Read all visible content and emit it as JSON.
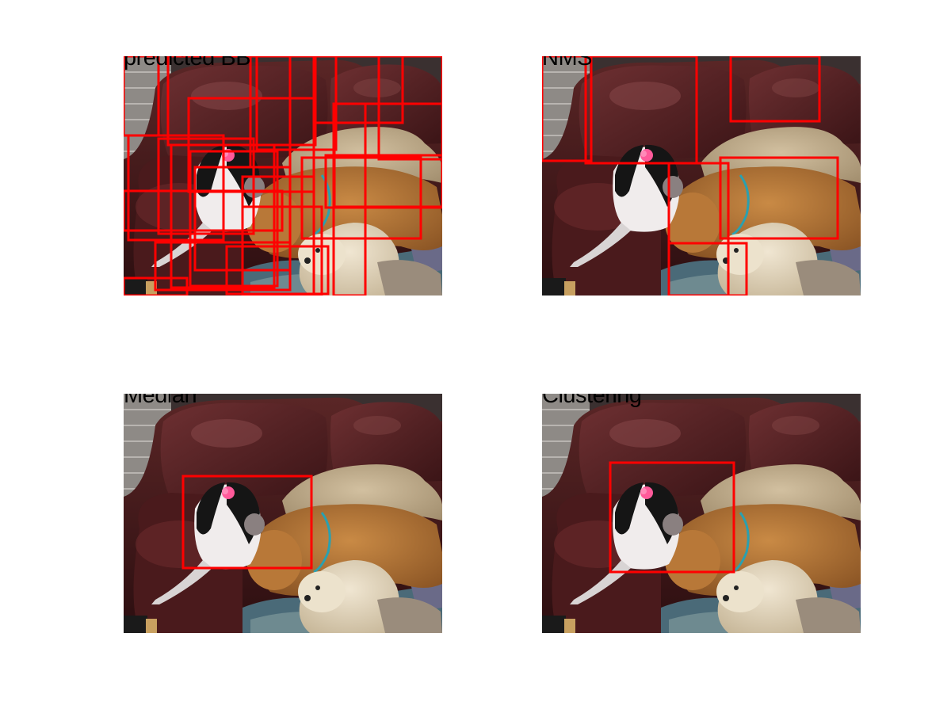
{
  "panels": [
    {
      "id": "predicted",
      "title": "predicted BB"
    },
    {
      "id": "nms",
      "title": "NMS"
    },
    {
      "id": "median",
      "title": "Median"
    },
    {
      "id": "clustering",
      "title": "Clustering"
    }
  ],
  "colors": {
    "box": "#ff0000"
  }
}
